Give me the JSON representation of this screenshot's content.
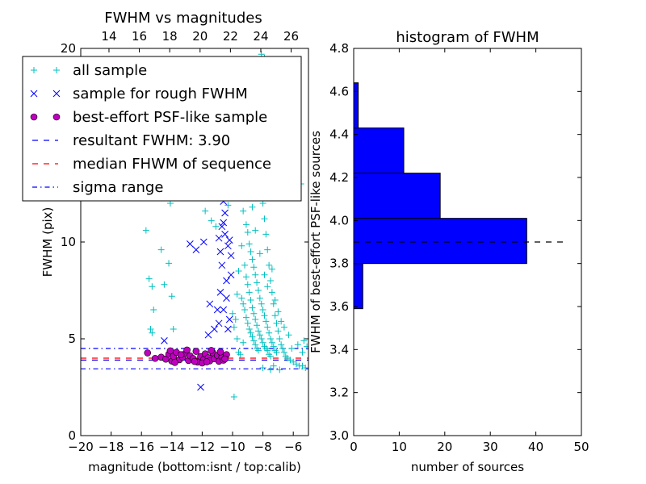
{
  "chart_data": [
    {
      "type": "scatter",
      "title": "FWHM vs magnitudes",
      "xlabel": "magnitude (bottom:isnt / top:calib)",
      "ylabel": "FWHM (pix)",
      "xlim": [
        -20,
        -5
      ],
      "ylim": [
        0,
        20
      ],
      "xticks": [
        "−20",
        "−18",
        "−16",
        "−14",
        "−12",
        "−10",
        "−8",
        "−6"
      ],
      "xtick_values": [
        -20,
        -18,
        -16,
        -14,
        -12,
        -10,
        -8,
        -6
      ],
      "yticks": [
        "0",
        "5",
        "10",
        "20"
      ],
      "ytick_values": [
        0,
        5,
        10,
        20
      ],
      "top_xticks": [
        "14",
        "16",
        "18",
        "20",
        "22",
        "24",
        "26"
      ],
      "top_xtick_values": [
        14,
        16,
        18,
        20,
        22,
        24,
        26
      ],
      "top_xlim": [
        12.14,
        27.14
      ],
      "legend": {
        "placement": "upper-left",
        "entries": [
          "all sample",
          "sample for rough FWHM",
          "best-effort PSF-like sample",
          "resultant FWHM: 3.90",
          "median FHWM of sequence",
          "sigma range"
        ]
      },
      "series": [
        {
          "name": "all sample",
          "marker": "+",
          "color": "#00bfbf",
          "points": [
            [
              -15.7,
              10.6
            ],
            [
              -15.5,
              8.1
            ],
            [
              -15.3,
              7.7
            ],
            [
              -15.2,
              6.5
            ],
            [
              -15.4,
              5.5
            ],
            [
              -15.3,
              5.3
            ],
            [
              -14.7,
              9.6
            ],
            [
              -14.5,
              7.8
            ],
            [
              -14.2,
              8.9
            ],
            [
              -14.0,
              7.2
            ],
            [
              -14.1,
              12.0
            ],
            [
              -13.9,
              5.5
            ],
            [
              -13.5,
              14.5
            ],
            [
              -13.2,
              13.8
            ],
            [
              -12.9,
              14.0
            ],
            [
              -12.5,
              13.2
            ],
            [
              -12.3,
              12.5
            ],
            [
              -11.8,
              11.6
            ],
            [
              -11.4,
              11.1
            ],
            [
              -11.1,
              10.8
            ],
            [
              -10.9,
              14.1
            ],
            [
              -10.6,
              12.3
            ],
            [
              -10.3,
              11.9
            ],
            [
              -10.1,
              13.3
            ],
            [
              -9.9,
              2.0
            ],
            [
              -9.6,
              4.3
            ],
            [
              -9.8,
              14.8
            ],
            [
              -9.5,
              12.9
            ],
            [
              -9.3,
              11.6
            ],
            [
              -9.1,
              10.9
            ],
            [
              -9.0,
              10.5
            ],
            [
              -8.9,
              9.9
            ],
            [
              -8.8,
              9.5
            ],
            [
              -8.7,
              9.1
            ],
            [
              -8.6,
              8.7
            ],
            [
              -8.5,
              8.3
            ],
            [
              -8.4,
              7.9
            ],
            [
              -8.3,
              7.5
            ],
            [
              -8.2,
              7.1
            ],
            [
              -8.1,
              6.8
            ],
            [
              -8.0,
              6.5
            ],
            [
              -7.9,
              6.2
            ],
            [
              -7.8,
              5.9
            ],
            [
              -7.7,
              5.6
            ],
            [
              -7.6,
              5.3
            ],
            [
              -7.5,
              5.0
            ],
            [
              -7.4,
              4.8
            ],
            [
              -7.3,
              4.6
            ],
            [
              -7.2,
              4.4
            ],
            [
              -7.1,
              4.3
            ],
            [
              -9.2,
              8.8
            ],
            [
              -9.1,
              8.2
            ],
            [
              -9.0,
              7.8
            ],
            [
              -8.9,
              7.4
            ],
            [
              -8.8,
              7.0
            ],
            [
              -8.7,
              6.6
            ],
            [
              -8.6,
              6.3
            ],
            [
              -8.5,
              6.0
            ],
            [
              -8.4,
              5.7
            ],
            [
              -8.3,
              5.4
            ],
            [
              -8.2,
              5.2
            ],
            [
              -8.1,
              5.0
            ],
            [
              -8.0,
              4.8
            ],
            [
              -7.9,
              4.6
            ],
            [
              -7.8,
              4.5
            ],
            [
              -7.7,
              4.4
            ],
            [
              -7.6,
              4.2
            ],
            [
              -7.5,
              4.1
            ],
            [
              -9.4,
              7.1
            ],
            [
              -9.3,
              6.8
            ],
            [
              -9.2,
              6.5
            ],
            [
              -9.1,
              6.1
            ],
            [
              -9.0,
              5.8
            ],
            [
              -8.9,
              5.5
            ],
            [
              -8.8,
              5.3
            ],
            [
              -8.7,
              5.1
            ],
            [
              -8.6,
              4.9
            ],
            [
              -8.5,
              4.7
            ],
            [
              -8.4,
              4.5
            ],
            [
              -8.3,
              4.4
            ],
            [
              -8.6,
              16.0
            ],
            [
              -8.4,
              15.2
            ],
            [
              -8.3,
              14.4
            ],
            [
              -8.2,
              13.6
            ],
            [
              -8.1,
              12.8
            ],
            [
              -8.0,
              12.0
            ],
            [
              -7.9,
              11.2
            ],
            [
              -7.8,
              10.4
            ],
            [
              -7.7,
              9.6
            ],
            [
              -7.6,
              8.8
            ],
            [
              -7.5,
              8.0
            ],
            [
              -7.4,
              7.4
            ],
            [
              -7.3,
              6.8
            ],
            [
              -7.2,
              6.2
            ],
            [
              -7.1,
              5.8
            ],
            [
              -7.0,
              5.4
            ],
            [
              -6.9,
              5.0
            ],
            [
              -6.8,
              4.7
            ],
            [
              -6.7,
              4.5
            ],
            [
              -6.6,
              4.3
            ],
            [
              -6.5,
              4.1
            ],
            [
              -6.4,
              4.0
            ],
            [
              -6.2,
              3.9
            ],
            [
              -6.0,
              3.8
            ],
            [
              -5.8,
              3.7
            ],
            [
              -5.6,
              3.6
            ],
            [
              -5.4,
              3.6
            ],
            [
              -5.2,
              3.5
            ],
            [
              -6.9,
              3.4
            ],
            [
              -7.3,
              3.6
            ],
            [
              -8.1,
              19.7
            ],
            [
              -7.9,
              19.5
            ],
            [
              -8.4,
              17.6
            ],
            [
              -7.6,
              16.8
            ],
            [
              -8.9,
              15.1
            ],
            [
              -7.3,
              14.2
            ],
            [
              -5.5,
              13.0
            ],
            [
              -5.3,
              4.9
            ],
            [
              -5.1,
              4.6
            ],
            [
              -5.4,
              4.3
            ],
            [
              -5.7,
              4.7
            ],
            [
              -6.1,
              4.5
            ],
            [
              -6.3,
              5.2
            ],
            [
              -6.6,
              5.6
            ],
            [
              -6.8,
              5.9
            ],
            [
              -7.0,
              6.4
            ],
            [
              -7.2,
              7.0
            ],
            [
              -7.4,
              8.6
            ],
            [
              -7.7,
              7.7
            ],
            [
              -7.9,
              8.3
            ],
            [
              -8.2,
              9.4
            ],
            [
              -8.5,
              10.6
            ],
            [
              -8.7,
              11.8
            ],
            [
              -8.9,
              12.4
            ],
            [
              -9.2,
              13.9
            ],
            [
              -9.4,
              9.8
            ],
            [
              -9.6,
              8.5
            ],
            [
              -9.7,
              7.3
            ],
            [
              -9.8,
              6.0
            ],
            [
              -9.7,
              5.0
            ],
            [
              -9.5,
              4.2
            ],
            [
              -9.3,
              4.8
            ],
            [
              -9.9,
              5.6
            ],
            [
              -10.0,
              6.3
            ],
            [
              -8.0,
              3.5
            ],
            [
              -7.5,
              3.4
            ]
          ]
        },
        {
          "name": "sample for rough FWHM",
          "marker": "x",
          "color": "#0000ff",
          "points": [
            [
              -12.1,
              2.5
            ],
            [
              -12.8,
              9.9
            ],
            [
              -12.4,
              9.6
            ],
            [
              -11.9,
              10.0
            ],
            [
              -11.5,
              6.8
            ],
            [
              -11.0,
              6.5
            ],
            [
              -10.8,
              9.5
            ],
            [
              -10.9,
              10.2
            ],
            [
              -10.7,
              10.8
            ],
            [
              -10.5,
              11.5
            ],
            [
              -10.6,
              12.1
            ],
            [
              -10.4,
              13.0
            ],
            [
              -10.5,
              13.6
            ],
            [
              -10.7,
              13.9
            ],
            [
              -10.6,
              11.0
            ],
            [
              -10.5,
              10.4
            ],
            [
              -10.3,
              9.8
            ],
            [
              -10.2,
              10.1
            ],
            [
              -10.1,
              9.3
            ],
            [
              -10.4,
              8.0
            ],
            [
              -10.7,
              8.8
            ],
            [
              -10.8,
              7.4
            ],
            [
              -10.4,
              7.1
            ],
            [
              -10.6,
              6.5
            ],
            [
              -10.2,
              6.0
            ],
            [
              -10.9,
              5.8
            ],
            [
              -11.2,
              5.5
            ],
            [
              -10.3,
              5.5
            ],
            [
              -11.6,
              5.2
            ],
            [
              -10.1,
              8.3
            ],
            [
              -14.5,
              4.9
            ]
          ]
        },
        {
          "name": "best-effort PSF-like sample",
          "marker": "o",
          "color": "#bf00bf",
          "points": [
            [
              -14.7,
              4.05
            ],
            [
              -14.4,
              3.95
            ],
            [
              -14.2,
              4.2
            ],
            [
              -14.0,
              3.85
            ],
            [
              -13.9,
              4.1
            ],
            [
              -13.7,
              4.3
            ],
            [
              -13.5,
              3.92
            ],
            [
              -13.3,
              4.05
            ],
            [
              -13.1,
              4.25
            ],
            [
              -12.9,
              3.88
            ],
            [
              -12.8,
              4.12
            ],
            [
              -12.6,
              3.98
            ],
            [
              -12.4,
              4.35
            ],
            [
              -12.3,
              3.8
            ],
            [
              -12.1,
              4.08
            ],
            [
              -11.9,
              3.93
            ],
            [
              -11.8,
              4.22
            ],
            [
              -11.6,
              4.02
            ],
            [
              -11.5,
              3.86
            ],
            [
              -11.3,
              4.28
            ],
            [
              -11.2,
              3.97
            ],
            [
              -11.0,
              4.14
            ],
            [
              -10.9,
              3.84
            ],
            [
              -10.7,
              4.06
            ],
            [
              -10.6,
              3.9
            ],
            [
              -10.4,
              4.18
            ],
            [
              -15.6,
              4.27
            ],
            [
              -15.1,
              3.99
            ],
            [
              -13.8,
              3.78
            ],
            [
              -12.0,
              3.75
            ],
            [
              -11.4,
              4.4
            ],
            [
              -10.8,
              4.32
            ],
            [
              -13.0,
              4.42
            ],
            [
              -14.1,
              4.38
            ],
            [
              -12.5,
              3.83
            ],
            [
              -11.7,
              3.81
            ],
            [
              -10.5,
              3.96
            ],
            [
              -13.4,
              4.18
            ]
          ]
        }
      ],
      "hlines": [
        {
          "name": "resultant FWHM",
          "y": 3.9,
          "style": "dashed",
          "color": "#0000ff"
        },
        {
          "name": "median FHWM of sequence",
          "y": 4.0,
          "style": "dashed",
          "color": "#ff0000"
        },
        {
          "name": "sigma range",
          "y": 3.45,
          "style": "dashdot",
          "color": "#0000ff"
        },
        {
          "name": "sigma range",
          "y": 4.5,
          "style": "dashdot",
          "color": "#0000ff"
        }
      ]
    },
    {
      "type": "bar",
      "orientation": "horizontal",
      "title": "histogram of FWHM",
      "xlabel": "number of sources",
      "ylabel": "FWHM of best-effort PSF-like sources",
      "xlim": [
        0,
        50
      ],
      "ylim": [
        3.0,
        4.8
      ],
      "xticks": [
        "0",
        "10",
        "20",
        "30",
        "40",
        "50"
      ],
      "xtick_values": [
        0,
        10,
        20,
        30,
        40,
        50
      ],
      "yticks": [
        "3.0",
        "3.2",
        "3.4",
        "3.6",
        "3.8",
        "4.0",
        "4.2",
        "4.4",
        "4.6",
        "4.8"
      ],
      "ytick_values": [
        3.0,
        3.2,
        3.4,
        3.6,
        3.8,
        4.0,
        4.2,
        4.4,
        4.6,
        4.8
      ],
      "bar_color": "#0000ff",
      "bins": [
        {
          "low": 3.59,
          "high": 3.8,
          "count": 2
        },
        {
          "low": 3.8,
          "high": 4.01,
          "count": 38
        },
        {
          "low": 4.01,
          "high": 4.22,
          "count": 19
        },
        {
          "low": 4.22,
          "high": 4.43,
          "count": 11
        },
        {
          "low": 4.43,
          "high": 4.64,
          "count": 1
        }
      ],
      "hline": {
        "y": 3.9,
        "x_range": [
          0,
          46
        ],
        "style": "dashed",
        "color": "#000000"
      }
    }
  ]
}
